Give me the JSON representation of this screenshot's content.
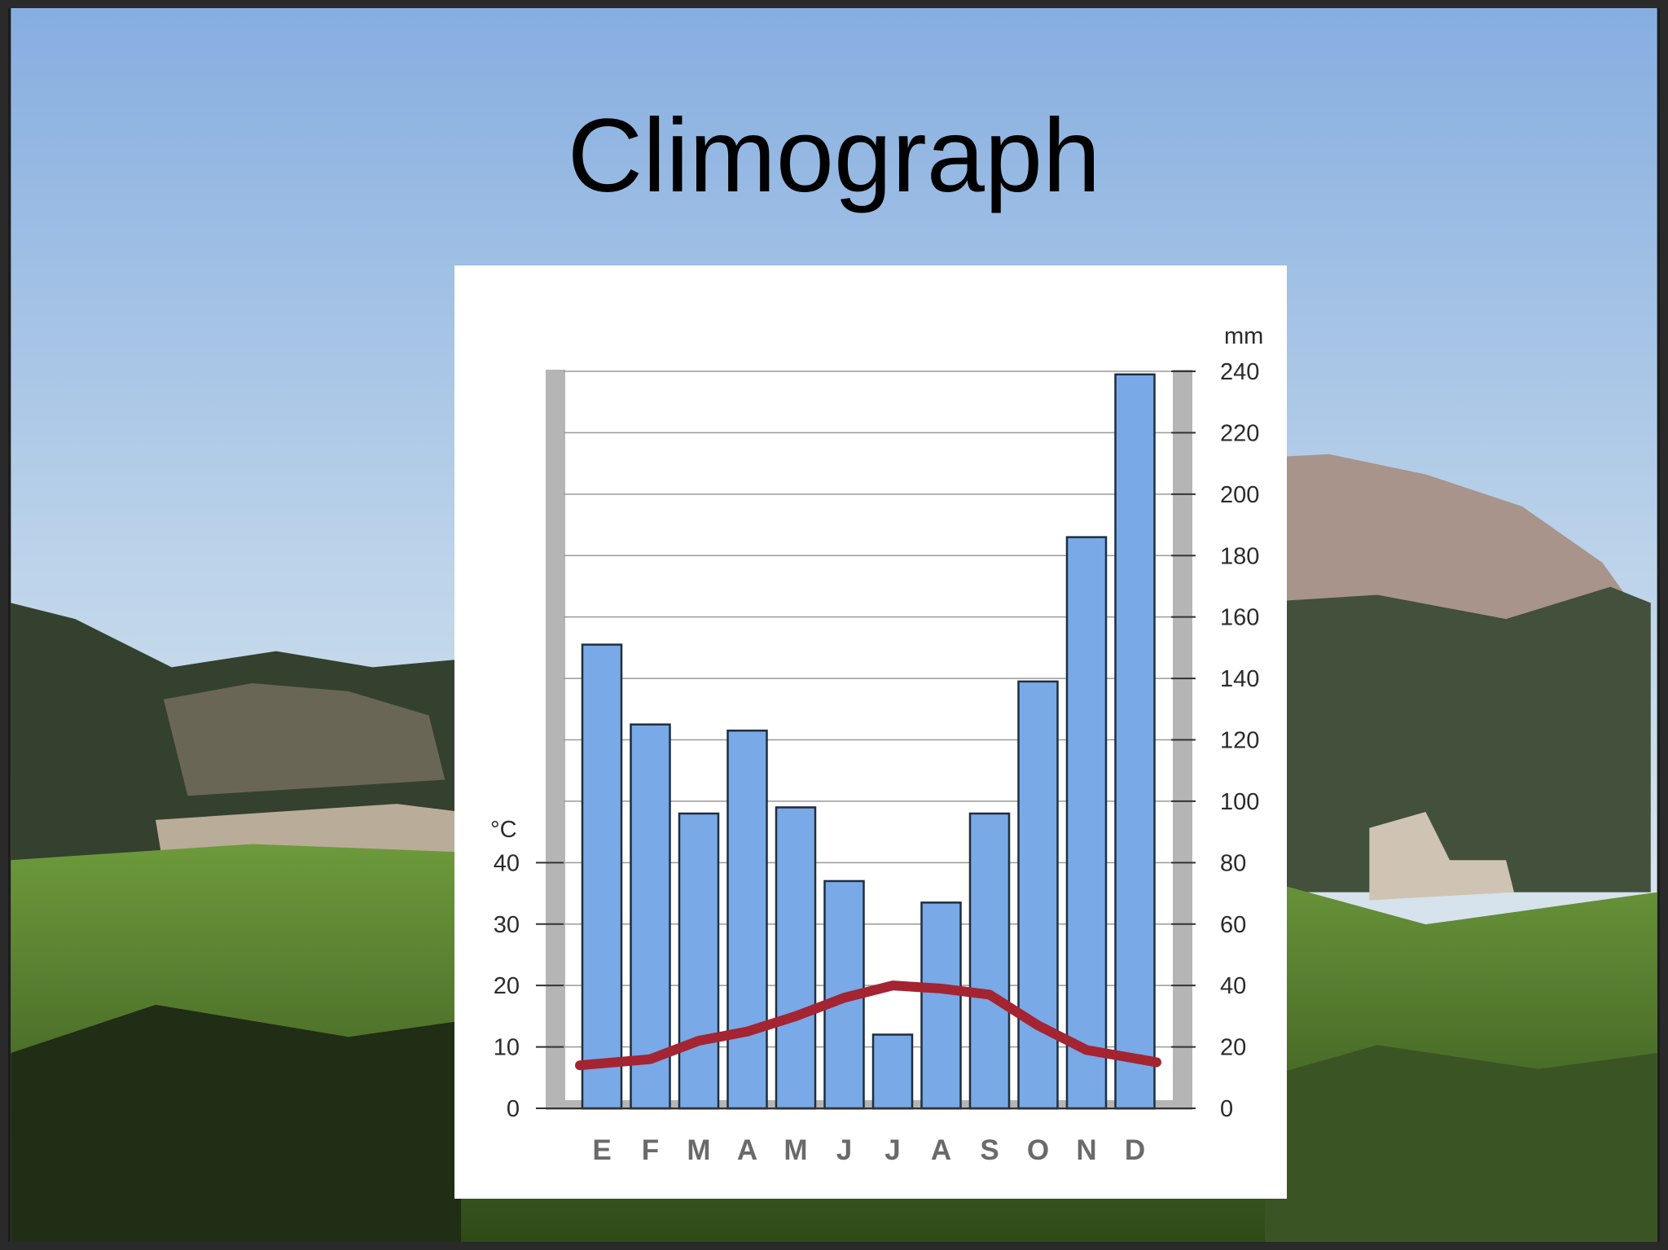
{
  "slide": {
    "title": "Climograph"
  },
  "colors": {
    "bar_fill": "#79a9e6",
    "bar_stroke": "#1f2e3d",
    "temperature_line": "#a42432",
    "axis_band": "#b5b5b5",
    "gridline": "#9a9a9a",
    "panel_background": "#ffffff"
  },
  "chart_data": {
    "type": "bar",
    "title": "",
    "categories": [
      "E",
      "F",
      "M",
      "A",
      "M",
      "J",
      "J",
      "A",
      "S",
      "O",
      "N",
      "D"
    ],
    "series": [
      {
        "type": "bar",
        "axis": "right",
        "values": [
          151,
          125,
          96,
          123,
          98,
          74,
          24,
          67,
          96,
          139,
          186,
          239
        ]
      },
      {
        "type": "line",
        "axis": "left",
        "values": [
          7,
          8,
          11,
          12.5,
          15,
          18,
          20,
          19.5,
          18.5,
          13.5,
          9.5,
          7.5
        ]
      }
    ],
    "y_left": {
      "unit": "°C",
      "ylim": [
        0,
        40
      ],
      "ticks": [
        "0",
        "10",
        "20",
        "30",
        "40"
      ]
    },
    "y_right": {
      "unit": "mm",
      "ylim": [
        0,
        240
      ],
      "ticks": [
        "0",
        "20",
        "40",
        "60",
        "80",
        "100",
        "120",
        "140",
        "160",
        "180",
        "200",
        "220",
        "240"
      ]
    },
    "grid": true,
    "legend": "none"
  }
}
